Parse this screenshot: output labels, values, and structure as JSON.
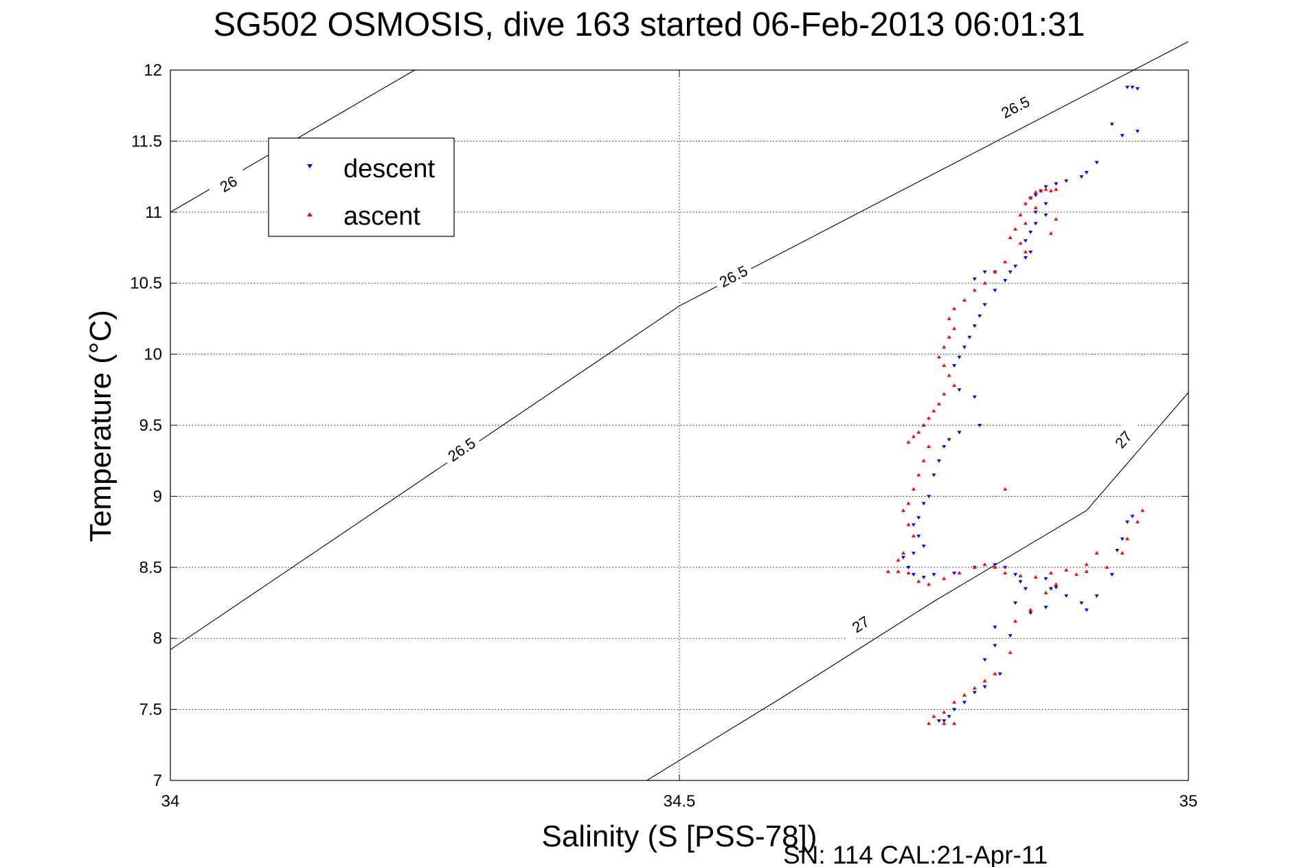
{
  "chart_data": {
    "type": "scatter",
    "title": "SG502 OSMOSIS, dive 163 started 06-Feb-2013 06:01:31",
    "xlabel": "Salinity (S [PSS-78])",
    "ylabel": "Temperature (°C)",
    "footer": "SN: 114  CAL:21-Apr-11",
    "xlim": [
      34,
      35
    ],
    "ylim": [
      7,
      12
    ],
    "xticks": [
      34,
      34.5,
      35
    ],
    "xtick_labels": [
      "34",
      "34.5",
      "35"
    ],
    "yticks": [
      7,
      7.5,
      8,
      8.5,
      9,
      9.5,
      10,
      10.5,
      11,
      11.5,
      12
    ],
    "ytick_labels": [
      "7",
      "7.5",
      "8",
      "8.5",
      "9",
      "9.5",
      "10",
      "10.5",
      "11",
      "11.5",
      "12"
    ],
    "grid": true,
    "legend": {
      "position": "top-left",
      "entries": [
        "descent",
        "ascent"
      ]
    },
    "density_contours": [
      {
        "label": "26",
        "points": [
          [
            34.0,
            11.0
          ],
          [
            34.24,
            12.0
          ]
        ],
        "label_at": [
          34.057,
          11.2
        ]
      },
      {
        "label": "26.5",
        "points": [
          [
            34.0,
            7.92
          ],
          [
            34.5,
            10.34
          ],
          [
            35.0,
            12.2
          ]
        ],
        "label_at": [
          34.553,
          10.55
        ]
      },
      {
        "label": "26.5",
        "points": [
          [
            34.0,
            7.92
          ],
          [
            34.5,
            10.34
          ],
          [
            35.0,
            12.2
          ]
        ],
        "label_at": [
          34.286,
          9.33
        ]
      },
      {
        "label": "26.5",
        "points": [
          [
            34.0,
            7.92
          ],
          [
            34.5,
            10.34
          ],
          [
            35.0,
            12.2
          ]
        ],
        "label_at": [
          34.83,
          11.74
        ]
      },
      {
        "label": "27",
        "points": [
          [
            34.468,
            7.0
          ],
          [
            34.6,
            7.58
          ],
          [
            34.75,
            8.26
          ],
          [
            34.9,
            8.9
          ],
          [
            35.0,
            9.73
          ]
        ],
        "label_at": [
          34.678,
          8.1
        ]
      },
      {
        "label": "27",
        "points": [
          [
            34.468,
            7.0
          ],
          [
            34.6,
            7.58
          ],
          [
            34.75,
            8.26
          ],
          [
            34.9,
            8.9
          ],
          [
            35.0,
            9.73
          ]
        ],
        "label_at": [
          34.936,
          9.4
        ]
      }
    ],
    "series": [
      {
        "name": "descent",
        "color": "#0000ff",
        "marker": "triangle-down",
        "points": [
          [
            34.94,
            11.88
          ],
          [
            34.945,
            11.88
          ],
          [
            34.95,
            11.87
          ],
          [
            34.925,
            11.62
          ],
          [
            34.935,
            11.54
          ],
          [
            34.95,
            11.57
          ],
          [
            34.91,
            11.35
          ],
          [
            34.9,
            11.28
          ],
          [
            34.895,
            11.25
          ],
          [
            34.88,
            11.22
          ],
          [
            34.87,
            11.2
          ],
          [
            34.86,
            11.18
          ],
          [
            34.855,
            11.15
          ],
          [
            34.85,
            11.12
          ],
          [
            34.845,
            11.1
          ],
          [
            34.86,
            11.06
          ],
          [
            34.85,
            11.0
          ],
          [
            34.86,
            10.98
          ],
          [
            34.85,
            10.92
          ],
          [
            34.845,
            10.86
          ],
          [
            34.84,
            10.8
          ],
          [
            34.845,
            10.72
          ],
          [
            34.84,
            10.68
          ],
          [
            34.83,
            10.62
          ],
          [
            34.825,
            10.58
          ],
          [
            34.82,
            10.52
          ],
          [
            34.81,
            10.58
          ],
          [
            34.8,
            10.58
          ],
          [
            34.79,
            10.53
          ],
          [
            34.81,
            10.45
          ],
          [
            34.8,
            10.35
          ],
          [
            34.795,
            10.27
          ],
          [
            34.79,
            10.2
          ],
          [
            34.785,
            10.12
          ],
          [
            34.78,
            10.05
          ],
          [
            34.775,
            9.98
          ],
          [
            34.77,
            9.92
          ],
          [
            34.775,
            9.75
          ],
          [
            34.79,
            9.7
          ],
          [
            34.795,
            9.5
          ],
          [
            34.775,
            9.45
          ],
          [
            34.765,
            9.4
          ],
          [
            34.76,
            9.35
          ],
          [
            34.755,
            9.25
          ],
          [
            34.75,
            9.15
          ],
          [
            34.745,
            9.0
          ],
          [
            34.74,
            8.95
          ],
          [
            34.735,
            8.85
          ],
          [
            34.73,
            8.8
          ],
          [
            34.735,
            8.72
          ],
          [
            34.74,
            8.65
          ],
          [
            34.73,
            8.6
          ],
          [
            34.72,
            8.57
          ],
          [
            34.725,
            8.5
          ],
          [
            34.73,
            8.45
          ],
          [
            34.74,
            8.43
          ],
          [
            34.75,
            8.45
          ],
          [
            34.77,
            8.46
          ],
          [
            34.79,
            8.5
          ],
          [
            34.81,
            8.52
          ],
          [
            34.82,
            8.5
          ],
          [
            34.83,
            8.45
          ],
          [
            34.835,
            8.4
          ],
          [
            34.84,
            8.35
          ],
          [
            34.86,
            8.42
          ],
          [
            34.87,
            8.36
          ],
          [
            34.88,
            8.3
          ],
          [
            34.895,
            8.25
          ],
          [
            34.9,
            8.2
          ],
          [
            34.91,
            8.3
          ],
          [
            34.925,
            8.45
          ],
          [
            34.93,
            8.62
          ],
          [
            34.935,
            8.7
          ],
          [
            34.94,
            8.82
          ],
          [
            34.945,
            8.86
          ],
          [
            34.865,
            8.35
          ],
          [
            34.86,
            8.22
          ],
          [
            34.845,
            8.18
          ],
          [
            34.83,
            8.25
          ],
          [
            34.81,
            8.08
          ],
          [
            34.825,
            8.02
          ],
          [
            34.81,
            7.95
          ],
          [
            34.8,
            7.85
          ],
          [
            34.815,
            7.75
          ],
          [
            34.8,
            7.66
          ],
          [
            34.79,
            7.62
          ],
          [
            34.78,
            7.55
          ],
          [
            34.77,
            7.5
          ],
          [
            34.765,
            7.45
          ],
          [
            34.76,
            7.42
          ],
          [
            34.755,
            7.42
          ]
        ]
      },
      {
        "name": "ascent",
        "color": "#ff0000",
        "marker": "triangle-up",
        "points": [
          [
            34.86,
            11.16
          ],
          [
            34.855,
            11.15
          ],
          [
            34.865,
            11.15
          ],
          [
            34.87,
            11.16
          ],
          [
            34.85,
            11.14
          ],
          [
            34.845,
            11.1
          ],
          [
            34.84,
            11.06
          ],
          [
            34.85,
            11.03
          ],
          [
            34.835,
            10.98
          ],
          [
            34.84,
            10.92
          ],
          [
            34.83,
            10.88
          ],
          [
            34.825,
            10.82
          ],
          [
            34.835,
            10.78
          ],
          [
            34.84,
            10.72
          ],
          [
            34.82,
            10.65
          ],
          [
            34.81,
            10.58
          ],
          [
            34.8,
            10.5
          ],
          [
            34.79,
            10.45
          ],
          [
            34.78,
            10.38
          ],
          [
            34.77,
            10.32
          ],
          [
            34.765,
            10.25
          ],
          [
            34.77,
            10.18
          ],
          [
            34.765,
            10.12
          ],
          [
            34.76,
            10.05
          ],
          [
            34.755,
            9.98
          ],
          [
            34.76,
            9.92
          ],
          [
            34.765,
            9.85
          ],
          [
            34.77,
            9.78
          ],
          [
            34.76,
            9.72
          ],
          [
            34.755,
            9.65
          ],
          [
            34.75,
            9.6
          ],
          [
            34.745,
            9.55
          ],
          [
            34.74,
            9.5
          ],
          [
            34.735,
            9.45
          ],
          [
            34.73,
            9.42
          ],
          [
            34.725,
            9.38
          ],
          [
            34.745,
            9.35
          ],
          [
            34.74,
            9.25
          ],
          [
            34.735,
            9.15
          ],
          [
            34.73,
            9.05
          ],
          [
            34.725,
            8.95
          ],
          [
            34.72,
            8.9
          ],
          [
            34.725,
            8.8
          ],
          [
            34.73,
            8.72
          ],
          [
            34.72,
            8.6
          ],
          [
            34.715,
            8.55
          ],
          [
            34.705,
            8.47
          ],
          [
            34.715,
            8.47
          ],
          [
            34.725,
            8.46
          ],
          [
            34.735,
            8.4
          ],
          [
            34.745,
            8.38
          ],
          [
            34.76,
            8.42
          ],
          [
            34.775,
            8.46
          ],
          [
            34.79,
            8.5
          ],
          [
            34.8,
            8.52
          ],
          [
            34.81,
            8.5
          ],
          [
            34.82,
            8.46
          ],
          [
            34.835,
            8.44
          ],
          [
            34.85,
            8.43
          ],
          [
            34.865,
            8.46
          ],
          [
            34.88,
            8.48
          ],
          [
            34.9,
            8.47
          ],
          [
            34.92,
            8.5
          ],
          [
            34.935,
            8.6
          ],
          [
            34.94,
            8.7
          ],
          [
            34.95,
            8.82
          ],
          [
            34.955,
            8.9
          ],
          [
            34.91,
            8.6
          ],
          [
            34.9,
            8.52
          ],
          [
            34.89,
            8.45
          ],
          [
            34.87,
            8.38
          ],
          [
            34.86,
            8.32
          ],
          [
            34.845,
            8.2
          ],
          [
            34.83,
            8.12
          ],
          [
            34.825,
            7.9
          ],
          [
            34.81,
            7.75
          ],
          [
            34.8,
            7.7
          ],
          [
            34.79,
            7.65
          ],
          [
            34.78,
            7.6
          ],
          [
            34.77,
            7.55
          ],
          [
            34.76,
            7.48
          ],
          [
            34.75,
            7.45
          ],
          [
            34.745,
            7.4
          ],
          [
            34.76,
            7.4
          ],
          [
            34.77,
            7.4
          ],
          [
            34.82,
            9.05
          ],
          [
            34.87,
            10.95
          ],
          [
            34.865,
            10.85
          ]
        ]
      }
    ]
  }
}
